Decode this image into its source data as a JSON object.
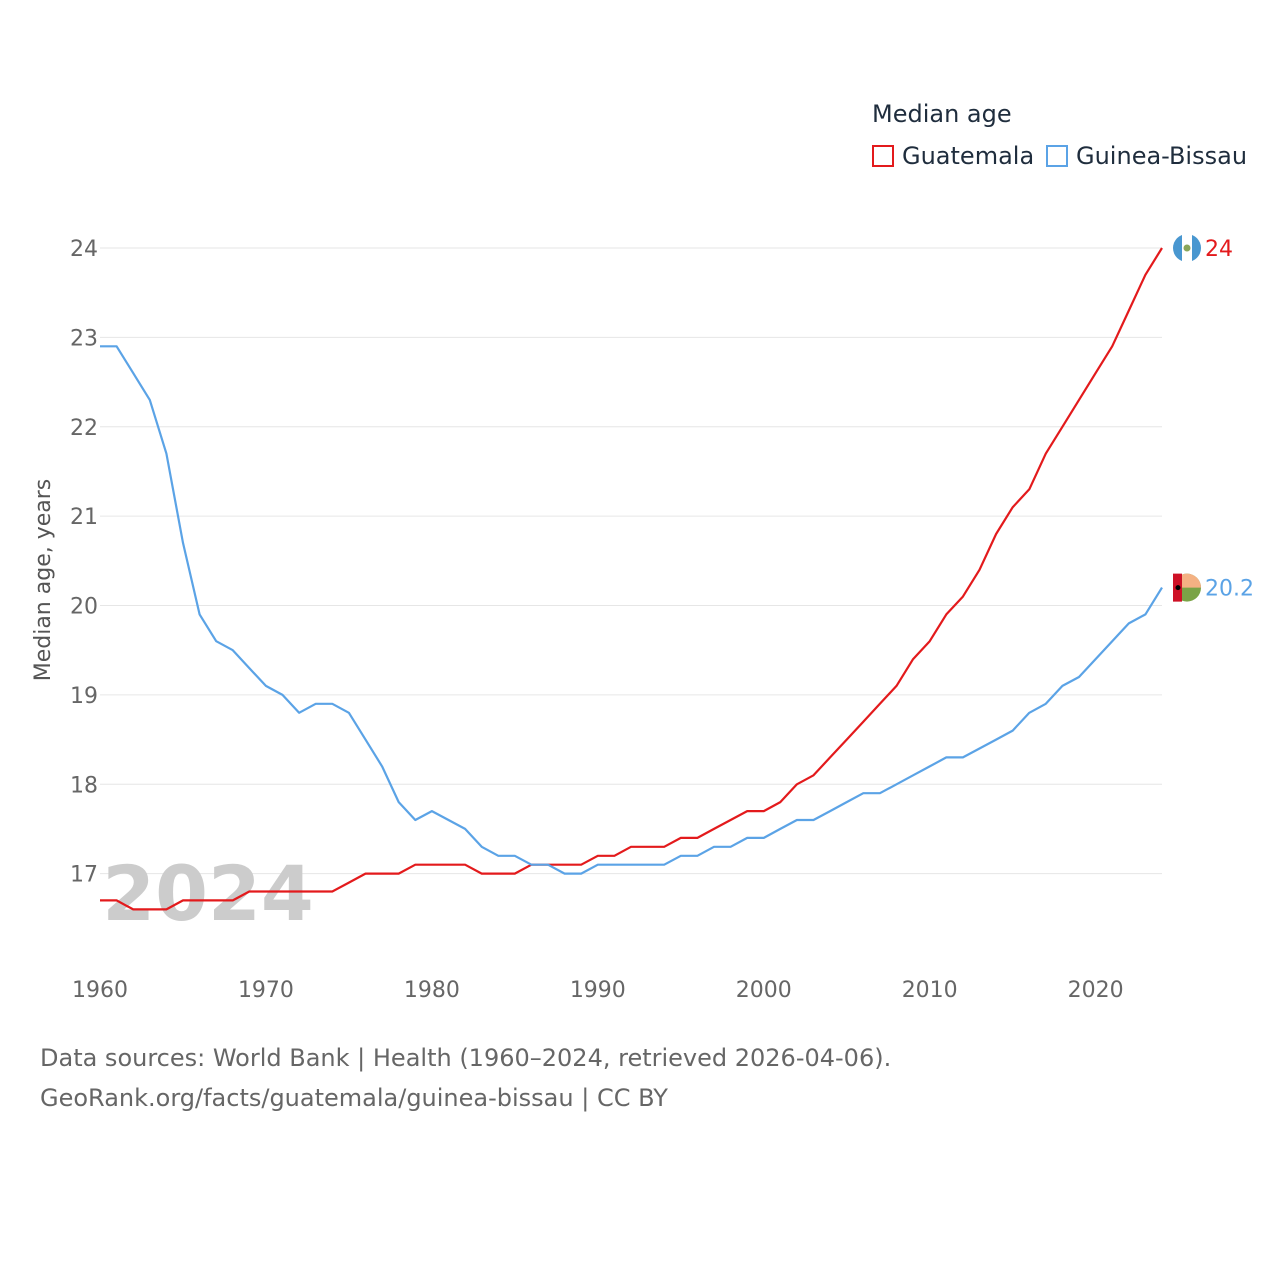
{
  "legend": {
    "title": "Median age",
    "items": [
      {
        "label": "Guatemala",
        "color": "#e31a1c"
      },
      {
        "label": "Guinea-Bissau",
        "color": "#5ba3e6"
      }
    ]
  },
  "footer": {
    "line1": "Data sources: World Bank | Health (1960–2024, retrieved 2026-04-06).",
    "line2": "GeoRank.org/facts/guatemala/guinea-bissau | CC BY"
  },
  "chart_data": {
    "type": "line",
    "title": "Median age",
    "xlabel": "",
    "ylabel": "Median age, years",
    "year_watermark": "2024",
    "xlim": [
      1960,
      2024
    ],
    "ylim": [
      16.0,
      24.0
    ],
    "x_ticks": [
      1960,
      1970,
      1980,
      1990,
      2000,
      2010,
      2020
    ],
    "y_ticks": [
      17,
      18,
      19,
      20,
      21,
      22,
      23,
      24
    ],
    "grid": true,
    "legend_position": "top-right",
    "x": [
      1960,
      1961,
      1962,
      1963,
      1964,
      1965,
      1966,
      1967,
      1968,
      1969,
      1970,
      1971,
      1972,
      1973,
      1974,
      1975,
      1976,
      1977,
      1978,
      1979,
      1980,
      1981,
      1982,
      1983,
      1984,
      1985,
      1986,
      1987,
      1988,
      1989,
      1990,
      1991,
      1992,
      1993,
      1994,
      1995,
      1996,
      1997,
      1998,
      1999,
      2000,
      2001,
      2002,
      2003,
      2004,
      2005,
      2006,
      2007,
      2008,
      2009,
      2010,
      2011,
      2012,
      2013,
      2014,
      2015,
      2016,
      2017,
      2018,
      2019,
      2020,
      2021,
      2022,
      2023,
      2024
    ],
    "series": [
      {
        "name": "Guatemala",
        "color": "#e31a1c",
        "end_label": "24",
        "values": [
          16.7,
          16.7,
          16.6,
          16.6,
          16.6,
          16.7,
          16.7,
          16.7,
          16.7,
          16.8,
          16.8,
          16.8,
          16.8,
          16.8,
          16.8,
          16.9,
          17.0,
          17.0,
          17.0,
          17.1,
          17.1,
          17.1,
          17.1,
          17.0,
          17.0,
          17.0,
          17.1,
          17.1,
          17.1,
          17.1,
          17.2,
          17.2,
          17.3,
          17.3,
          17.3,
          17.4,
          17.4,
          17.5,
          17.6,
          17.7,
          17.7,
          17.8,
          18.0,
          18.1,
          18.3,
          18.5,
          18.7,
          18.9,
          19.1,
          19.4,
          19.6,
          19.9,
          20.1,
          20.4,
          20.8,
          21.1,
          21.3,
          21.7,
          22.0,
          22.3,
          22.6,
          22.9,
          23.3,
          23.7,
          24.0
        ]
      },
      {
        "name": "Guinea-Bissau",
        "color": "#5ba3e6",
        "end_label": "20.2",
        "values": [
          22.9,
          22.9,
          22.6,
          22.3,
          21.7,
          20.7,
          19.9,
          19.6,
          19.5,
          19.3,
          19.1,
          19.0,
          18.8,
          18.9,
          18.9,
          18.8,
          18.5,
          18.2,
          17.8,
          17.6,
          17.7,
          17.6,
          17.5,
          17.3,
          17.2,
          17.2,
          17.1,
          17.1,
          17.0,
          17.0,
          17.1,
          17.1,
          17.1,
          17.1,
          17.1,
          17.2,
          17.2,
          17.3,
          17.3,
          17.4,
          17.4,
          17.5,
          17.6,
          17.6,
          17.7,
          17.8,
          17.9,
          17.9,
          18.0,
          18.1,
          18.2,
          18.3,
          18.3,
          18.4,
          18.5,
          18.6,
          18.8,
          18.9,
          19.1,
          19.2,
          19.4,
          19.6,
          19.8,
          19.9,
          20.2
        ]
      }
    ]
  }
}
